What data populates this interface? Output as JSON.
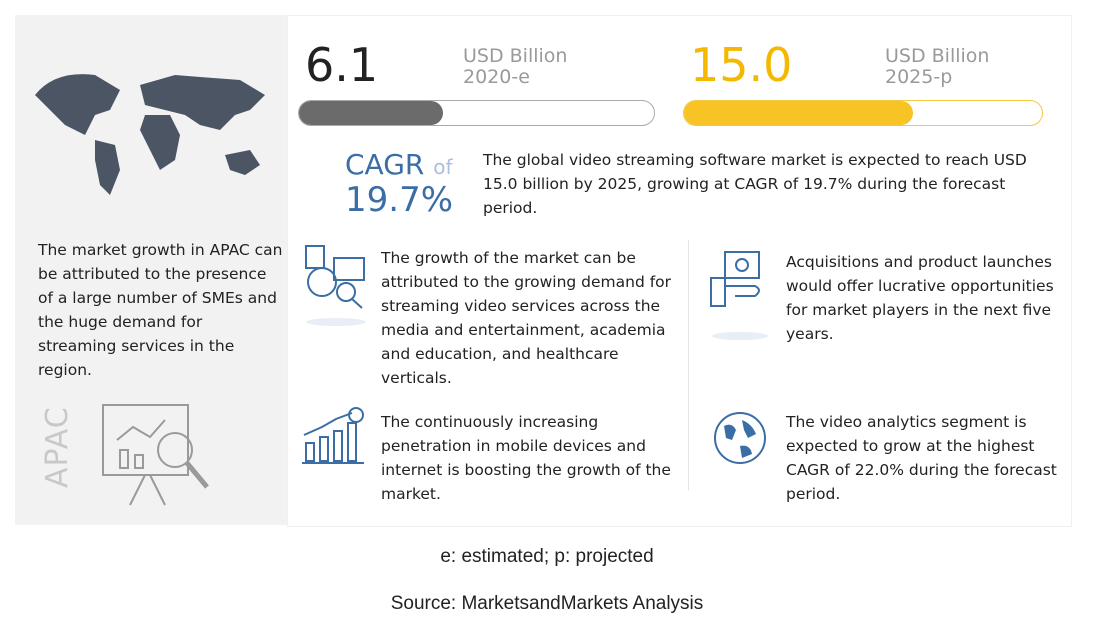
{
  "left": {
    "text": "The market growth in APAC can be attributed to the presence of a large number of SMEs and the huge demand for streaming services in the region.",
    "region": "APAC"
  },
  "metrics": [
    {
      "value": "6.1",
      "unit": "USD Billion",
      "label": "2020-e"
    },
    {
      "value": "15.0",
      "unit": "USD Billion",
      "label": "2025-p"
    }
  ],
  "cagr": {
    "label": "CAGR",
    "of": "of",
    "value": "19.7%",
    "text": "The global video streaming software market is expected to reach USD 15.0 billion by 2025, growing at CAGR of 19.7% during the forecast period."
  },
  "insights": [
    "The growth of the market can be attributed to the growing demand for streaming video services across the media and entertainment, academia and education, and healthcare verticals.",
    "Acquisitions and product launches would offer lucrative opportunities for market players in the next five years.",
    "The continuously increasing penetration in mobile devices and internet is boosting the growth of the market.",
    "The video analytics segment is expected to grow at the highest CAGR of 22.0% during the forecast period."
  ],
  "footnote": "e: estimated; p: projected",
  "source": "Source: MarketsandMarkets Analysis"
}
